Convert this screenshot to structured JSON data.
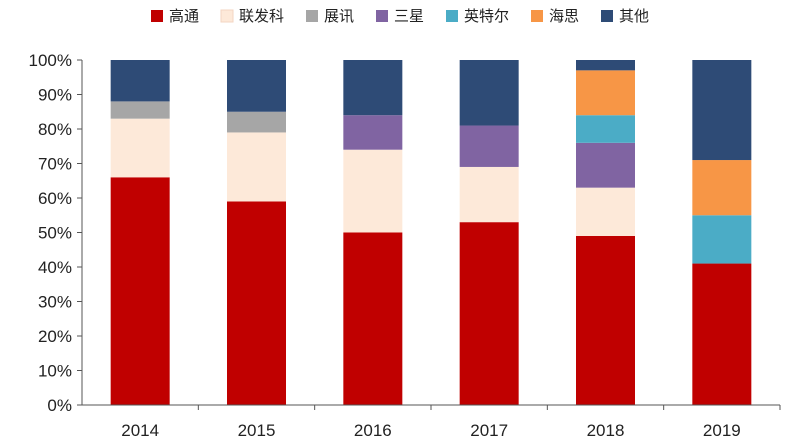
{
  "chart_data": {
    "type": "bar",
    "stacked": true,
    "categories": [
      "2014",
      "2015",
      "2016",
      "2017",
      "2018",
      "2019"
    ],
    "series": [
      {
        "name": "高通",
        "color": "#c00000",
        "values": [
          66,
          59,
          50,
          53,
          49,
          41
        ]
      },
      {
        "name": "联发科",
        "color": "#fde9d9",
        "values": [
          17,
          20,
          24,
          16,
          14,
          0
        ]
      },
      {
        "name": "展讯",
        "color": "#a6a6a6",
        "values": [
          5,
          6,
          0,
          0,
          0,
          0
        ]
      },
      {
        "name": "三星",
        "color": "#8064a2",
        "values": [
          0,
          0,
          10,
          12,
          13,
          0
        ]
      },
      {
        "name": "英特尔",
        "color": "#4bacc6",
        "values": [
          0,
          0,
          0,
          0,
          8,
          14
        ]
      },
      {
        "name": "海思",
        "color": "#f79646",
        "values": [
          0,
          0,
          0,
          0,
          13,
          16
        ]
      },
      {
        "name": "其他",
        "color": "#2e4b76",
        "values": [
          12,
          15,
          16,
          19,
          3,
          29
        ]
      }
    ],
    "yticks": [
      "0%",
      "10%",
      "20%",
      "30%",
      "40%",
      "50%",
      "60%",
      "70%",
      "80%",
      "90%",
      "100%"
    ],
    "ylim": [
      0,
      100
    ],
    "legend_position": "top",
    "grid": false
  }
}
